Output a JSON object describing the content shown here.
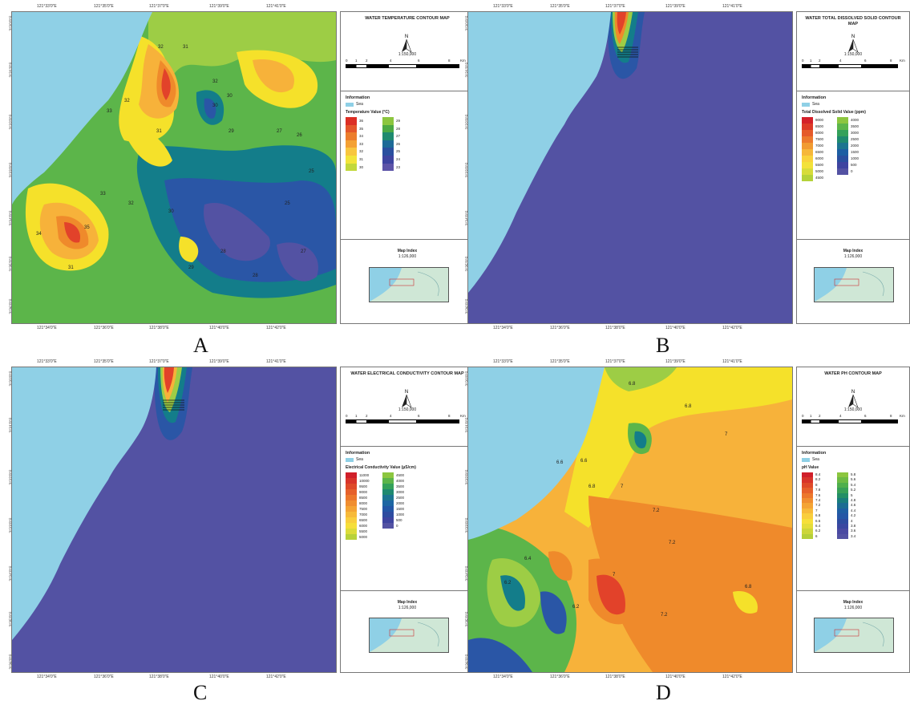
{
  "panels": [
    {
      "letter": "A",
      "title": "WATER TEMPERATURE CONTOUR MAP",
      "scale": "1:150,000",
      "scale_units": "Km",
      "scale_ticks": [
        "0",
        "1",
        "2",
        "4",
        "6",
        "8"
      ],
      "info_title": "Information",
      "sea_label": "Sea",
      "value_title": "Temperature Value (°C)",
      "col1": [
        "36",
        "35",
        "34",
        "33",
        "32",
        "31",
        "30"
      ],
      "col2": [
        "29",
        "28",
        "27",
        "26",
        "25",
        "24",
        "23"
      ],
      "map_index_title": "Map Index",
      "map_index_scale": "1:126,000"
    },
    {
      "letter": "B",
      "title": "WATER TOTAL DISSOLVED SOLID CONTOUR MAP",
      "scale": "1:150,000",
      "scale_units": "Km",
      "scale_ticks": [
        "0",
        "1",
        "2",
        "4",
        "6",
        "8"
      ],
      "info_title": "Information",
      "sea_label": "Sea",
      "value_title": "Total Dissolved Solid Value (ppm)",
      "col1": [
        "9000",
        "8500",
        "8000",
        "7500",
        "7000",
        "6500",
        "6000",
        "5500",
        "5000",
        "4500"
      ],
      "col2": [
        "4000",
        "3500",
        "3000",
        "2500",
        "2000",
        "1500",
        "1000",
        "500",
        "0"
      ],
      "map_index_title": "Map Index",
      "map_index_scale": "1:126,000"
    },
    {
      "letter": "C",
      "title": "WATER ELECTRICAL CONDUCTIVITY CONTOUR MAP",
      "scale": "1:150,000",
      "scale_units": "Km",
      "scale_ticks": [
        "0",
        "1",
        "2",
        "4",
        "6",
        "8"
      ],
      "info_title": "Information",
      "sea_label": "Sea",
      "value_title": "Electrical Conductivity Value (µS/cm)",
      "col1": [
        "11000",
        "10000",
        "9500",
        "9000",
        "8500",
        "8000",
        "7500",
        "7000",
        "6500",
        "6000",
        "5500",
        "5000"
      ],
      "col2": [
        "4500",
        "4000",
        "3500",
        "3000",
        "2500",
        "2000",
        "1500",
        "1000",
        "500",
        "0"
      ],
      "map_index_title": "Map Index",
      "map_index_scale": "1:126,000"
    },
    {
      "letter": "D",
      "title": "WATER PH CONTOUR MAP",
      "scale": "1:150,000",
      "scale_units": "Km",
      "scale_ticks": [
        "0",
        "1",
        "2",
        "4",
        "6",
        "8"
      ],
      "info_title": "Information",
      "sea_label": "Sea",
      "value_title": "pH Value",
      "col1": [
        "8.4",
        "8.2",
        "8",
        "7.8",
        "7.6",
        "7.4",
        "7.2",
        "7",
        "6.8",
        "6.6",
        "6.4",
        "6.2",
        "6"
      ],
      "col2": [
        "5.8",
        "5.6",
        "5.4",
        "5.2",
        "5",
        "4.8",
        "4.6",
        "4.4",
        "4.2",
        "4",
        "3.8",
        "3.6",
        "3.4"
      ],
      "map_index_title": "Map Index",
      "map_index_scale": "1:126,000"
    }
  ],
  "grid_top": [
    "121°33'0\"E",
    "121°35'0\"E",
    "121°37'0\"E",
    "121°39'0\"E",
    "121°41'0\"E"
  ],
  "grid_bottom": [
    "121°34'0\"E",
    "121°36'0\"E",
    "121°38'0\"E",
    "121°40'0\"E",
    "121°42'0\"E"
  ],
  "grid_left": [
    "2°30'0\"S",
    "2°31'0\"S",
    "2°32'0\"S",
    "2°33'0\"S",
    "2°34'0\"S",
    "2°35'0\"S",
    "2°36'0\"S"
  ],
  "temp_labels": [
    "32",
    "31",
    "33",
    "32",
    "31",
    "32",
    "30",
    "31",
    "34",
    "35",
    "33",
    "32",
    "30",
    "29",
    "28",
    "29",
    "30",
    "27",
    "26",
    "25",
    "25",
    "27",
    "28"
  ],
  "ph_labels": [
    "6.8",
    "6.8",
    "7",
    "6.8",
    "7",
    "7.2",
    "6.6",
    "6.6",
    "7.2",
    "6.4",
    "6.2",
    "6.2",
    "7",
    "7.2",
    "6.8"
  ],
  "colors": {
    "sea": "#8fd0e6",
    "deep_blue": "#5352a3",
    "blue": "#2a56a6",
    "teal": "#137d8a",
    "green": "#5cb54a",
    "lightgreen": "#9dcd45",
    "yellow": "#f5e12a",
    "lightorange": "#f7b23a",
    "orange": "#ef8a2b",
    "red": "#e2422a"
  },
  "ramps": {
    "temp_col1": [
      "#dc2e24",
      "#e4562a",
      "#ec7d2c",
      "#f4a133",
      "#f8c63e",
      "#f2e43a",
      "#c2d83b"
    ],
    "temp_col2": [
      "#8cc63f",
      "#4ca944",
      "#1f8a6f",
      "#1d6a97",
      "#2a4f9f",
      "#3e44a0",
      "#5d54a8"
    ],
    "tds_col1": [
      "#d4202a",
      "#dd3a28",
      "#e55a2a",
      "#ec7a2d",
      "#f19b32",
      "#f6b73a",
      "#f9d23c",
      "#f3e23a",
      "#d7dc3a",
      "#b4d23a"
    ],
    "tds_col2": [
      "#8cc63f",
      "#5cb54a",
      "#34a15a",
      "#1f8a6f",
      "#1c7590",
      "#1d5ea3",
      "#2a4f9f",
      "#3e44a0",
      "#5352a3"
    ],
    "ec_col1": [
      "#d01f2a",
      "#d8342a",
      "#df4a29",
      "#e6602b",
      "#ec772c",
      "#f08e30",
      "#f4a434",
      "#f7ba3a",
      "#f9ce3d",
      "#f6df3a",
      "#dcdc3a",
      "#b8d23a"
    ],
    "ec_col2": [
      "#8cc63f",
      "#5cb54a",
      "#34a15a",
      "#1f8a6f",
      "#1c7590",
      "#1d66a3",
      "#2356a6",
      "#2e4ca0",
      "#3e44a0",
      "#5352a3"
    ],
    "ph_col1": [
      "#d01f2a",
      "#d8342a",
      "#df4a29",
      "#e6602b",
      "#ec772c",
      "#f08e30",
      "#f4a434",
      "#f7ba3a",
      "#f9ce3d",
      "#f6df3a",
      "#e4dd3a",
      "#ccd63a",
      "#b4cf3a"
    ],
    "ph_col2": [
      "#8cc63f",
      "#6dbb44",
      "#4faf4c",
      "#38a057",
      "#238f66",
      "#1a7d7c",
      "#1c6c93",
      "#1f5ea3",
      "#2556a6",
      "#2e4ca0",
      "#3a47a1",
      "#4a4aa2",
      "#5352a3"
    ]
  }
}
